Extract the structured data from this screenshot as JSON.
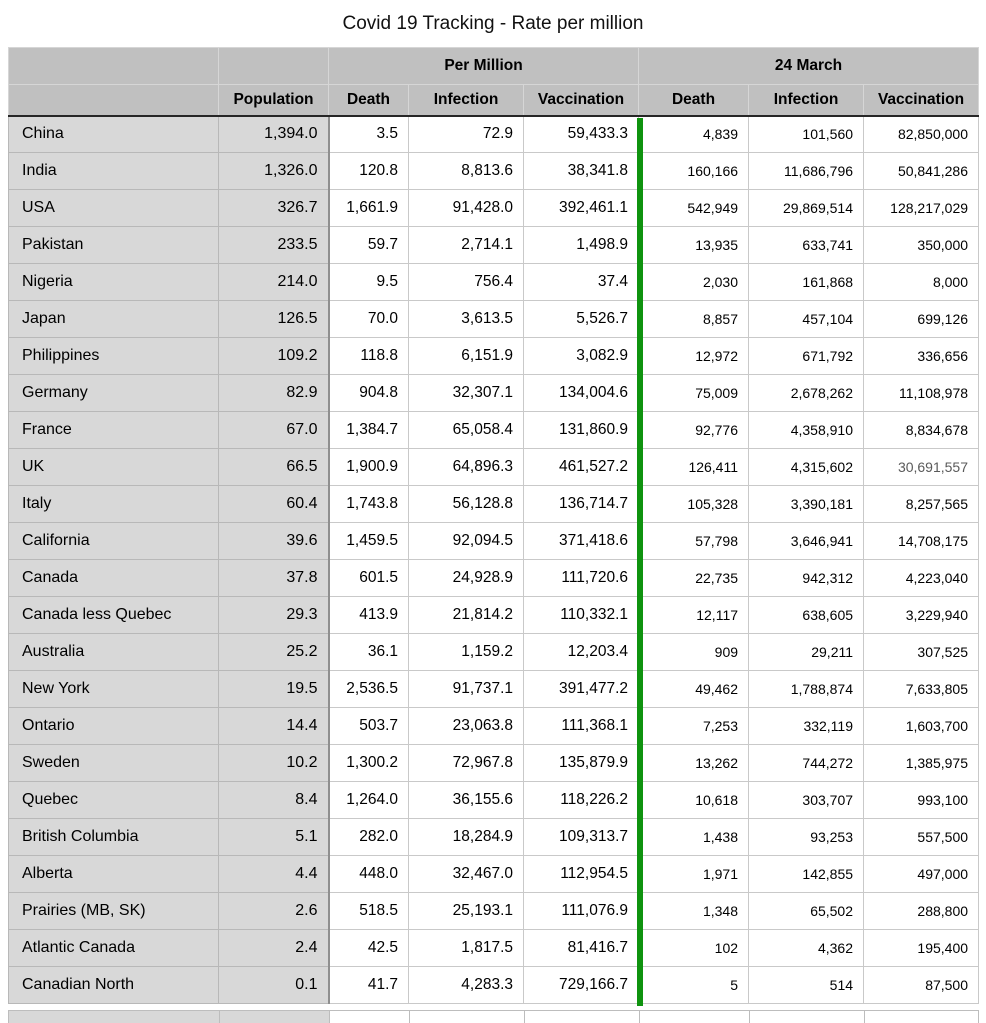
{
  "title": "Covid 19 Tracking - Rate per million",
  "colors": {
    "header_bg": "#c0c0c0",
    "label_column_bg": "#d8d8d8",
    "divider_green": "#0f930f",
    "muted_text": "#5a5a5a"
  },
  "table": {
    "group_headers": [
      {
        "label": "",
        "span": 2
      },
      {
        "label": "Per Million",
        "span": 3
      },
      {
        "label": "24 March",
        "span": 3
      }
    ],
    "column_headers": [
      "",
      "Population",
      "Death",
      "Infection",
      "Vaccination",
      "Death",
      "Infection",
      "Vaccination"
    ],
    "rows": [
      [
        "China",
        "1,394.0",
        "3.5",
        "72.9",
        "59,433.3",
        "4,839",
        "101,560",
        "82,850,000"
      ],
      [
        "India",
        "1,326.0",
        "120.8",
        "8,813.6",
        "38,341.8",
        "160,166",
        "11,686,796",
        "50,841,286"
      ],
      [
        "USA",
        "326.7",
        "1,661.9",
        "91,428.0",
        "392,461.1",
        "542,949",
        "29,869,514",
        "128,217,029"
      ],
      [
        "Pakistan",
        "233.5",
        "59.7",
        "2,714.1",
        "1,498.9",
        "13,935",
        "633,741",
        "350,000"
      ],
      [
        "Nigeria",
        "214.0",
        "9.5",
        "756.4",
        "37.4",
        "2,030",
        "161,868",
        "8,000"
      ],
      [
        "Japan",
        "126.5",
        "70.0",
        "3,613.5",
        "5,526.7",
        "8,857",
        "457,104",
        "699,126"
      ],
      [
        "Philippines",
        "109.2",
        "118.8",
        "6,151.9",
        "3,082.9",
        "12,972",
        "671,792",
        "336,656"
      ],
      [
        "Germany",
        "82.9",
        "904.8",
        "32,307.1",
        "134,004.6",
        "75,009",
        "2,678,262",
        "11,108,978"
      ],
      [
        "France",
        "67.0",
        "1,384.7",
        "65,058.4",
        "131,860.9",
        "92,776",
        "4,358,910",
        "8,834,678"
      ],
      [
        "UK",
        "66.5",
        "1,900.9",
        "64,896.3",
        "461,527.2",
        "126,411",
        "4,315,602",
        "30,691,557"
      ],
      [
        "Italy",
        "60.4",
        "1,743.8",
        "56,128.8",
        "136,714.7",
        "105,328",
        "3,390,181",
        "8,257,565"
      ],
      [
        "California",
        "39.6",
        "1,459.5",
        "92,094.5",
        "371,418.6",
        "57,798",
        "3,646,941",
        "14,708,175"
      ],
      [
        "Canada",
        "37.8",
        "601.5",
        "24,928.9",
        "111,720.6",
        "22,735",
        "942,312",
        "4,223,040"
      ],
      [
        "Canada less Quebec",
        "29.3",
        "413.9",
        "21,814.2",
        "110,332.1",
        "12,117",
        "638,605",
        "3,229,940"
      ],
      [
        "Australia",
        "25.2",
        "36.1",
        "1,159.2",
        "12,203.4",
        "909",
        "29,211",
        "307,525"
      ],
      [
        "New York",
        "19.5",
        "2,536.5",
        "91,737.1",
        "391,477.2",
        "49,462",
        "1,788,874",
        "7,633,805"
      ],
      [
        "Ontario",
        "14.4",
        "503.7",
        "23,063.8",
        "111,368.1",
        "7,253",
        "332,119",
        "1,603,700"
      ],
      [
        "Sweden",
        "10.2",
        "1,300.2",
        "72,967.8",
        "135,879.9",
        "13,262",
        "744,272",
        "1,385,975"
      ],
      [
        "Quebec",
        "8.4",
        "1,264.0",
        "36,155.6",
        "118,226.2",
        "10,618",
        "303,707",
        "993,100"
      ],
      [
        "British Columbia",
        "5.1",
        "282.0",
        "18,284.9",
        "109,313.7",
        "1,438",
        "93,253",
        "557,500"
      ],
      [
        "Alberta",
        "4.4",
        "448.0",
        "32,467.0",
        "112,954.5",
        "1,971",
        "142,855",
        "497,000"
      ],
      [
        "Prairies (MB, SK)",
        "2.6",
        "518.5",
        "25,193.1",
        "111,076.9",
        "1,348",
        "65,502",
        "288,800"
      ],
      [
        "Atlantic Canada",
        "2.4",
        "42.5",
        "1,817.5",
        "81,416.7",
        "102",
        "4,362",
        "195,400"
      ],
      [
        "Canadian North",
        "0.1",
        "41.7",
        "4,283.3",
        "729,166.7",
        "5",
        "514",
        "87,500"
      ]
    ],
    "muted_cells": [
      [
        9,
        7
      ]
    ]
  }
}
